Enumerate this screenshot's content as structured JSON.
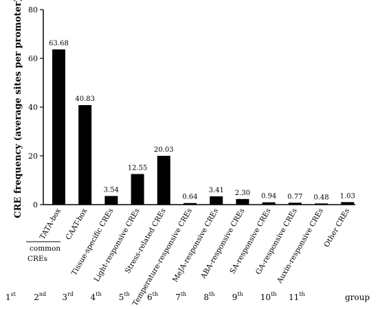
{
  "chart_data": {
    "type": "bar",
    "ylabel": "CRE frequency (average sites per promoter)",
    "ylim": [
      0,
      80
    ],
    "yticks": [
      0,
      20,
      40,
      60,
      80
    ],
    "categories": [
      "TATA-box",
      "CAAT-box",
      "Tissue-specific CREs",
      "Light-responsive CREs",
      "Stress-related CREs",
      "Temperature-responsive CREs",
      "MeJA-responsive CREs",
      "ABA-responsive CREs",
      "SA-responsive CREs",
      "GA-responsive CREs",
      "Auxin-responsive CREs",
      "Other CREs"
    ],
    "values": [
      63.68,
      40.83,
      3.54,
      12.55,
      20.03,
      0.64,
      3.41,
      2.3,
      0.94,
      0.77,
      0.48,
      1.03
    ],
    "value_labels": [
      "63.68",
      "40.83",
      "3.54",
      "12.55",
      "20.03",
      "0.64",
      "3.41",
      "2.30",
      "0.94",
      "0.77",
      "0.48",
      "1.03"
    ],
    "bar_color": "#000000",
    "common_group": {
      "line1": "common",
      "line2": "CREs"
    },
    "groups": [
      {
        "num": "1",
        "sup": "st"
      },
      {
        "num": "2",
        "sup": "nd"
      },
      {
        "num": "3",
        "sup": "rd"
      },
      {
        "num": "4",
        "sup": "th"
      },
      {
        "num": "5",
        "sup": "th"
      },
      {
        "num": "6",
        "sup": "th"
      },
      {
        "num": "7",
        "sup": "th"
      },
      {
        "num": "8",
        "sup": "th"
      },
      {
        "num": "9",
        "sup": "th"
      },
      {
        "num": "10",
        "sup": "th"
      },
      {
        "num": "11",
        "sup": "th"
      }
    ],
    "group_word": "group"
  }
}
